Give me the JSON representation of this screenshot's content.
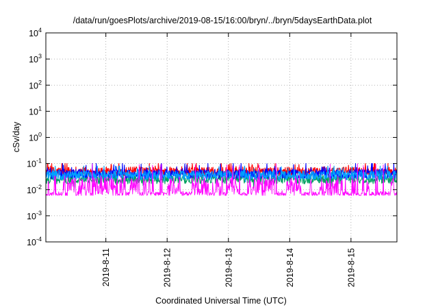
{
  "chart_data": {
    "type": "line",
    "title": "/data/run/goesPlots/archive/2019-08-15/16:00/bryn/../bryn/5daysEarthData.plot",
    "xlabel": "Coordinated Universal Time (UTC)",
    "ylabel": "cSv/day",
    "yscale": "log",
    "ylim": [
      0.0001,
      10000
    ],
    "xlim": [
      "2019-08-10T00:30",
      "2019-08-15T18:00"
    ],
    "grid": true,
    "yticks": [
      {
        "value": 0.0001,
        "base": "10",
        "exp": "-4"
      },
      {
        "value": 0.001,
        "base": "10",
        "exp": "-3"
      },
      {
        "value": 0.01,
        "base": "10",
        "exp": "-2"
      },
      {
        "value": 0.1,
        "base": "10",
        "exp": "-1"
      },
      {
        "value": 1,
        "base": "10",
        "exp": "0"
      },
      {
        "value": 10,
        "base": "10",
        "exp": "1"
      },
      {
        "value": 100,
        "base": "10",
        "exp": "2"
      },
      {
        "value": 1000,
        "base": "10",
        "exp": "3"
      },
      {
        "value": 10000,
        "base": "10",
        "exp": "4"
      }
    ],
    "xticks": [
      {
        "value": "2019-08-11T00:00",
        "label": "2019-8-11"
      },
      {
        "value": "2019-08-12T00:00",
        "label": "2019-8-12"
      },
      {
        "value": "2019-08-13T00:00",
        "label": "2019-8-13"
      },
      {
        "value": "2019-08-14T00:00",
        "label": "2019-8-14"
      },
      {
        "value": "2019-08-15T00:00",
        "label": "2019-8-15"
      }
    ],
    "series": [
      {
        "color": "#ff0000",
        "typical": 0.05,
        "max": 0.1,
        "min": 0.03
      },
      {
        "color": "#00a060",
        "typical": 0.025,
        "max": 0.05,
        "min": 0.012
      },
      {
        "color": "#0000ff",
        "typical": 0.04,
        "max": 0.1,
        "min": 0.025
      },
      {
        "color": "#00a0ff",
        "typical": 0.035,
        "max": 0.08,
        "min": 0.02
      },
      {
        "color": "#ff00ff",
        "typical": 0.01,
        "max": 0.1,
        "min": 0.006
      }
    ]
  }
}
